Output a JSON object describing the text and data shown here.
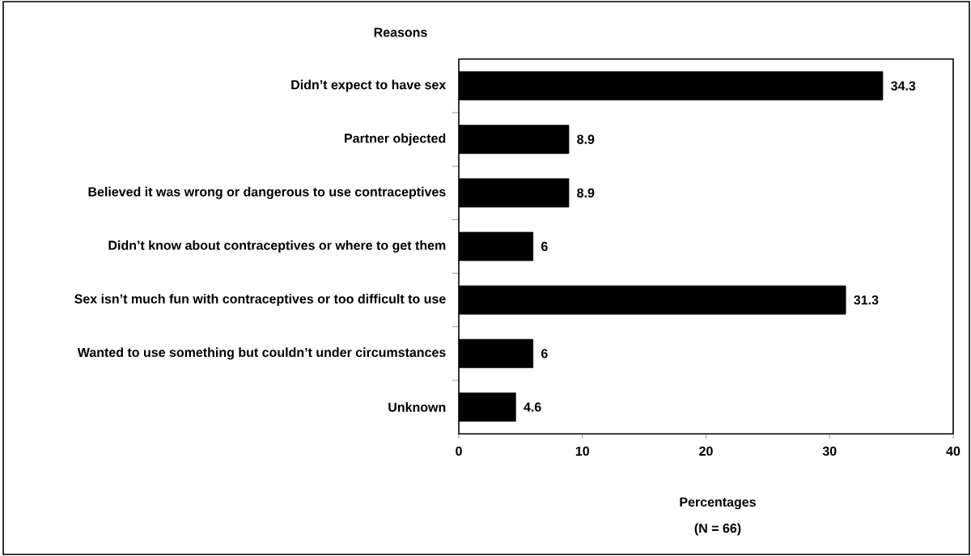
{
  "chart_data": {
    "type": "bar",
    "orientation": "horizontal",
    "ylabel": "Reasons",
    "xlabel": "Percentages",
    "annotations": [
      "(N = 66)"
    ],
    "categories": [
      "Didn’t expect to have sex",
      "Partner objected",
      "Believed it was wrong or dangerous to use contraceptives",
      "Didn’t know about contraceptives or where to get them",
      "Sex isn’t much fun with contraceptives or too difficult to use",
      "Wanted to use something but couldn’t under circumstances",
      "Unknown"
    ],
    "values": [
      34.3,
      8.9,
      8.9,
      6,
      31.3,
      6,
      4.6
    ],
    "color": "#000000",
    "data_labels": true,
    "xlim": [
      0,
      40
    ],
    "xticks": [
      0,
      10,
      20,
      30,
      40
    ]
  }
}
